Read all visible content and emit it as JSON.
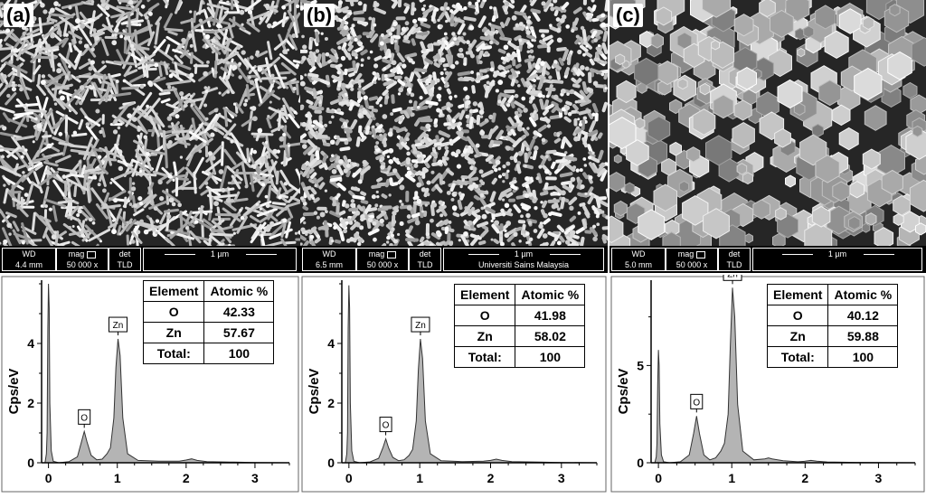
{
  "panels": [
    {
      "id": "a",
      "letter": "(a)",
      "sem": {
        "wd_label": "WD",
        "wd": "4.4 mm",
        "mag_label": "mag",
        "mag": "50 000 x",
        "det_label": "det",
        "det": "TLD",
        "scale": "1 µm",
        "footer": ""
      },
      "table": {
        "headers": [
          "Element",
          "Atomic %"
        ],
        "rows": [
          [
            "O",
            "42.33"
          ],
          [
            "Zn",
            "57.67"
          ],
          [
            "Total:",
            "100"
          ]
        ]
      }
    },
    {
      "id": "b",
      "letter": "(b)",
      "sem": {
        "wd_label": "WD",
        "wd": "6.5 mm",
        "mag_label": "mag",
        "mag": "50 000 x",
        "det_label": "det",
        "det": "TLD",
        "scale": "1 µm",
        "footer": "Universiti Sains Malaysia"
      },
      "table": {
        "headers": [
          "Element",
          "Atomic %"
        ],
        "rows": [
          [
            "O",
            "41.98"
          ],
          [
            "Zn",
            "58.02"
          ],
          [
            "Total:",
            "100"
          ]
        ]
      }
    },
    {
      "id": "c",
      "letter": "(c)",
      "sem": {
        "wd_label": "WD",
        "wd": "5.0 mm",
        "mag_label": "mag",
        "mag": "50 000 x",
        "det_label": "det",
        "det": "TLD",
        "scale": "1 µm",
        "footer": ""
      },
      "table": {
        "headers": [
          "Element",
          "Atomic %"
        ],
        "rows": [
          [
            "O",
            "40.12"
          ],
          [
            "Zn",
            "59.88"
          ],
          [
            "Total:",
            "100"
          ]
        ]
      }
    }
  ],
  "chart_data": [
    {
      "type": "area",
      "ylabel": "Cps/eV",
      "xlim": [
        -0.1,
        3.5
      ],
      "ylim": [
        0,
        6.0
      ],
      "xticks": [
        0,
        1,
        2,
        3
      ],
      "yticks": [
        0,
        2,
        4
      ],
      "fill_color": "#b4b4b4",
      "peaks": [
        {
          "label": "O",
          "x": 0.52,
          "y": 1.05
        },
        {
          "label": "Zn",
          "x": 1.01,
          "y": 4.15
        }
      ],
      "x": [
        -0.1,
        -0.05,
        -0.03,
        -0.02,
        -0.01,
        0.0,
        0.01,
        0.02,
        0.04,
        0.07,
        0.15,
        0.3,
        0.42,
        0.48,
        0.52,
        0.56,
        0.62,
        0.7,
        0.78,
        0.85,
        0.9,
        0.95,
        0.98,
        1.01,
        1.04,
        1.08,
        1.15,
        1.3,
        1.6,
        1.9,
        2.0,
        2.08,
        2.16,
        2.3,
        2.7,
        3.0,
        3.5
      ],
      "y": [
        0,
        0,
        0.3,
        1.0,
        4.5,
        6.0,
        5.2,
        2.0,
        0.4,
        0.05,
        0,
        0.04,
        0.2,
        0.7,
        1.05,
        0.7,
        0.25,
        0.1,
        0.12,
        0.3,
        0.5,
        1.5,
        3.2,
        4.15,
        3.6,
        1.5,
        0.3,
        0.08,
        0.05,
        0.05,
        0.09,
        0.13,
        0.08,
        0.04,
        0.02,
        0.01,
        0
      ]
    },
    {
      "type": "area",
      "ylabel": "Cps/eV",
      "xlim": [
        -0.1,
        3.5
      ],
      "ylim": [
        0,
        6.0
      ],
      "xticks": [
        0,
        1,
        2,
        3
      ],
      "yticks": [
        0,
        2,
        4
      ],
      "fill_color": "#b4b4b4",
      "peaks": [
        {
          "label": "O",
          "x": 0.52,
          "y": 0.8
        },
        {
          "label": "Zn",
          "x": 1.01,
          "y": 4.15
        }
      ],
      "x": [
        -0.1,
        -0.05,
        -0.03,
        -0.02,
        -0.01,
        0.0,
        0.01,
        0.02,
        0.04,
        0.07,
        0.15,
        0.3,
        0.42,
        0.48,
        0.52,
        0.56,
        0.62,
        0.7,
        0.78,
        0.85,
        0.9,
        0.95,
        0.98,
        1.01,
        1.04,
        1.08,
        1.15,
        1.3,
        1.6,
        1.9,
        2.0,
        2.08,
        2.16,
        2.3,
        2.7,
        3.0,
        3.5
      ],
      "y": [
        0,
        0,
        0.3,
        1.0,
        4.5,
        5.95,
        5.2,
        2.0,
        0.4,
        0.05,
        0,
        0.03,
        0.15,
        0.5,
        0.8,
        0.5,
        0.18,
        0.07,
        0.1,
        0.25,
        0.45,
        1.4,
        3.1,
        4.15,
        3.5,
        1.4,
        0.3,
        0.07,
        0.04,
        0.05,
        0.08,
        0.12,
        0.08,
        0.04,
        0.02,
        0.01,
        0
      ]
    },
    {
      "type": "area",
      "ylabel": "Cps/eV",
      "xlim": [
        -0.1,
        3.5
      ],
      "ylim": [
        0,
        9.2
      ],
      "xticks": [
        0,
        1,
        2,
        3
      ],
      "yticks": [
        0,
        5
      ],
      "fill_color": "#b4b4b4",
      "peaks": [
        {
          "label": "O",
          "x": 0.52,
          "y": 2.4
        },
        {
          "label": "Zn",
          "x": 1.01,
          "y": 9.0
        }
      ],
      "x": [
        -0.1,
        -0.05,
        -0.03,
        -0.02,
        -0.01,
        0.0,
        0.01,
        0.02,
        0.04,
        0.07,
        0.15,
        0.3,
        0.42,
        0.48,
        0.52,
        0.56,
        0.62,
        0.7,
        0.78,
        0.85,
        0.9,
        0.95,
        0.98,
        1.01,
        1.04,
        1.08,
        1.15,
        1.3,
        1.45,
        1.5,
        1.55,
        1.7,
        1.9,
        2.0,
        2.08,
        2.16,
        2.3,
        2.7,
        3.0,
        3.5
      ],
      "y": [
        0,
        0,
        0.3,
        1.0,
        4.0,
        5.8,
        5.0,
        2.0,
        0.4,
        0.05,
        0,
        0.05,
        0.4,
        1.5,
        2.4,
        1.5,
        0.4,
        0.15,
        0.25,
        0.6,
        1.0,
        2.5,
        6.0,
        9.0,
        7.5,
        3.0,
        0.6,
        0.15,
        0.2,
        0.25,
        0.2,
        0.1,
        0.05,
        0.08,
        0.12,
        0.08,
        0.04,
        0.02,
        0.01,
        0
      ]
    }
  ]
}
